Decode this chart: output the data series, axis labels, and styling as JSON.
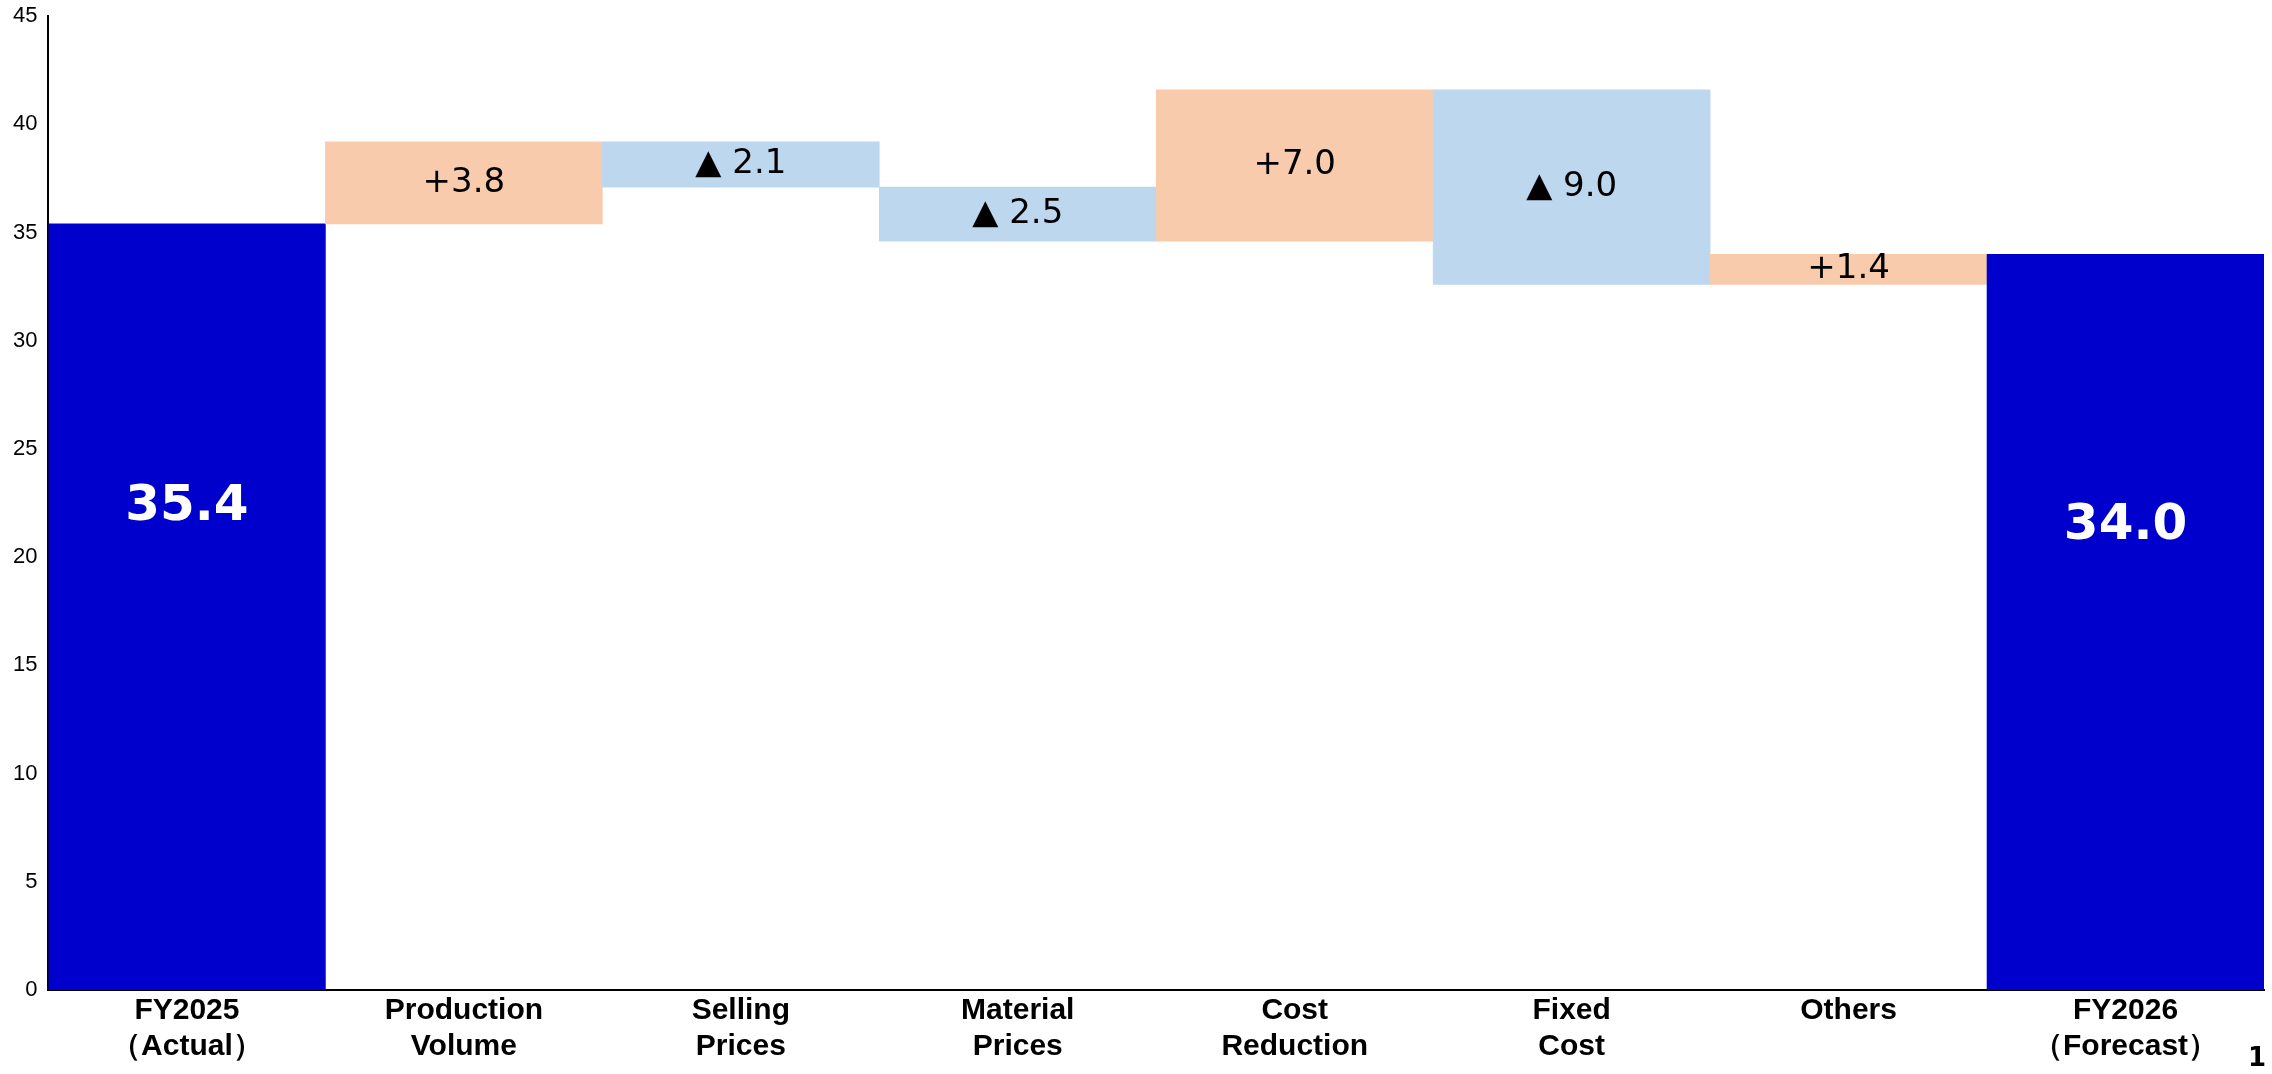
{
  "chart_data": {
    "type": "bar",
    "categories": [
      "FY2025\n（Actual）",
      "Production\nVolume",
      "Selling\nPrices",
      "Material\nPrices",
      "Cost\nReduction",
      "Fixed\nCost",
      "Others",
      "FY2026\n（Forecast）"
    ],
    "values": [
      35.4,
      3.8,
      -2.1,
      -2.5,
      7.0,
      -9.0,
      1.4,
      34.0
    ],
    "base": [
      0,
      35.4,
      39.2,
      37.1,
      34.6,
      41.6,
      32.6,
      0
    ],
    "colors": [
      "#0000cc",
      "#f8cbad",
      "#bdd7ee",
      "#bdd7ee",
      "#f8cbad",
      "#bdd7ee",
      "#f8cbad",
      "#0000cc"
    ],
    "value_labels": [
      "35.4",
      "+3.8",
      "▲ 2.1",
      "▲ 2.5",
      "+7.0",
      "▲ 9.0",
      "+1.4",
      "34.0"
    ],
    "ylim": [
      0,
      45
    ],
    "yticks": [
      0,
      5,
      10,
      15,
      20,
      25,
      30,
      35,
      40,
      45
    ],
    "grid": false,
    "legend": false,
    "annotations": [
      "1"
    ]
  }
}
